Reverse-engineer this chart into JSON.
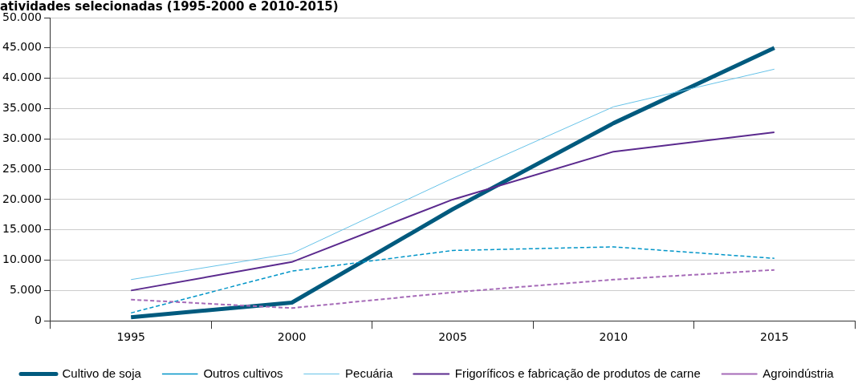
{
  "chart_data": {
    "type": "line",
    "title": "atividades selecionadas (1995-2000 e 2010-2015)",
    "categories": [
      "1995",
      "2000",
      "2005",
      "2010",
      "2015"
    ],
    "ylim": [
      0,
      50000
    ],
    "yticks": [
      {
        "value": 0,
        "label": "0"
      },
      {
        "value": 5000,
        "label": "5.000"
      },
      {
        "value": 10000,
        "label": "10.000"
      },
      {
        "value": 15000,
        "label": "15.000"
      },
      {
        "value": 20000,
        "label": "20.000"
      },
      {
        "value": 25000,
        "label": "25.000"
      },
      {
        "value": 30000,
        "label": "30.000"
      },
      {
        "value": 35000,
        "label": "35.000"
      },
      {
        "value": 40000,
        "label": "40.000"
      },
      {
        "value": 45000,
        "label": "45.000"
      },
      {
        "value": 50000,
        "label": "50.000"
      }
    ],
    "grid": "y",
    "legend": "bottom",
    "marker": "none",
    "series": [
      {
        "name": "Cultivo de soja",
        "color": "#005a7e",
        "values": [
          600,
          3000,
          18400,
          32600,
          45000
        ]
      },
      {
        "name": "Outros cultivos",
        "color": "#0095c8",
        "line_style": "dashed",
        "values": [
          1300,
          8200,
          11600,
          12200,
          10300
        ]
      },
      {
        "name": "Pecuária",
        "color": "#66c2e8",
        "values": [
          6800,
          11100,
          23500,
          35300,
          41500
        ]
      },
      {
        "name": "Frigoríficos e fabricação de produtos de carne",
        "color": "#5b2a8e",
        "values": [
          5000,
          9700,
          20000,
          27900,
          31100
        ]
      },
      {
        "name": "Agroindústria",
        "color": "#a66bb8",
        "line_style": "dashed",
        "values": [
          3500,
          2100,
          4700,
          6800,
          8400
        ]
      }
    ]
  }
}
